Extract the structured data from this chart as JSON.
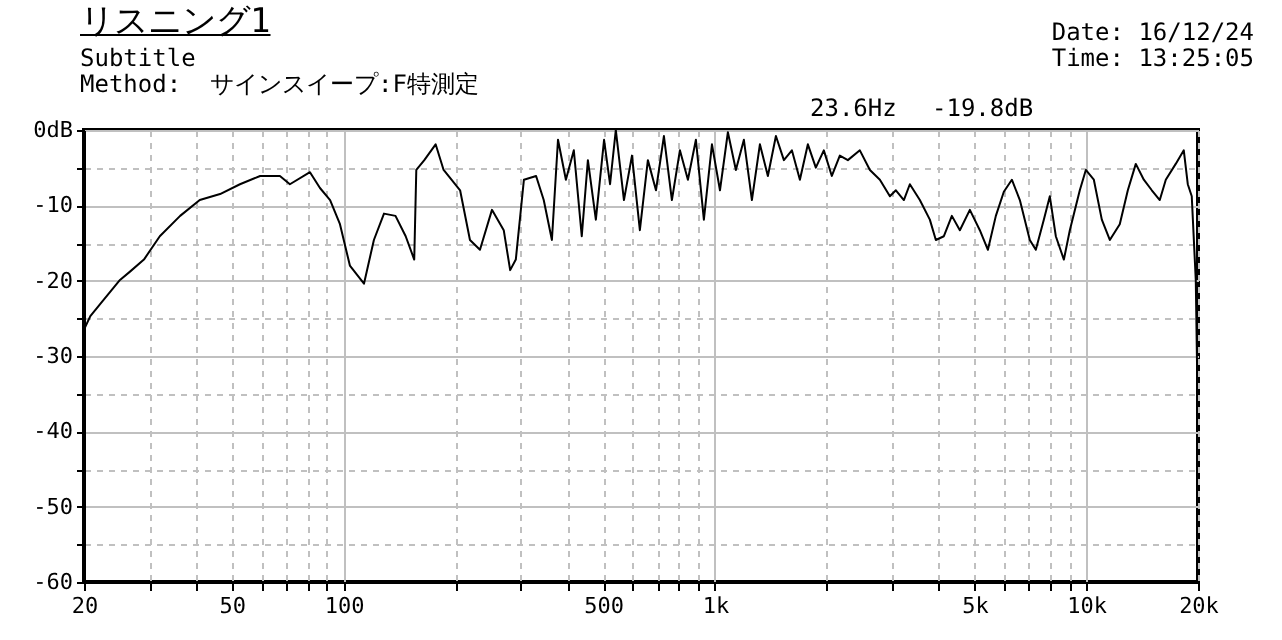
{
  "chart_data": {
    "type": "line",
    "title": "リスニング1",
    "subtitle": "Subtitle",
    "annotations": [
      "Method:  サインスイープ:F特測定",
      "Date: 16/12/24",
      "Time: 13:25:05",
      "23.6Hz",
      "-19.8dB"
    ],
    "x": [
      20,
      20.8,
      22.1,
      25,
      26.6,
      29,
      32,
      36.3,
      41,
      46.5,
      52.6,
      59.6,
      67.4,
      71.7,
      81.2,
      86.4,
      92,
      97.8,
      104,
      113.5,
      120.7,
      128.5,
      138,
      147,
      155,
      157,
      165,
      177,
      186,
      206,
      219,
      233,
      251,
      270,
      281,
      291,
      306,
      330,
      346,
      364,
      378,
      397,
      417,
      438,
      455,
      478,
      503,
      522,
      541,
      569,
      598,
      628,
      660,
      694,
      729,
      766,
      805,
      846,
      889,
      934,
      982,
      1032,
      1084,
      1139,
      1197,
      1258,
      1322,
      1389,
      1460,
      1534,
      1612,
      1694,
      1780,
      1870,
      1965,
      2065,
      2170,
      2281,
      2457,
      2615,
      2782,
      2960,
      3072,
      3228,
      3350,
      3564,
      3792,
      3936,
      4137,
      4347,
      4568,
      4860,
      5170,
      5436,
      5710,
      6000,
      6306,
      6626,
      7048,
      7316,
      7688,
      7980,
      8282,
      8706,
      9034,
      9610,
      9976,
      10484,
      11016,
      11576,
      12312,
      12944,
      13600,
      14292,
      15018,
      15780,
      16380,
      17420,
      18312,
      18772,
      19240,
      19726,
      20000
    ],
    "series": [
      {
        "color": "#000000",
        "values": [
          -26.5,
          -24.7,
          -23.1,
          -19.9,
          -18.8,
          -17.2,
          -14.1,
          -11.4,
          -9.3,
          -8.5,
          -7.2,
          -6.1,
          -6.1,
          -7.2,
          -5.6,
          -7.7,
          -9.3,
          -12.5,
          -18.0,
          -20.4,
          -14.6,
          -11.1,
          -11.4,
          -14.1,
          -17.2,
          -5.3,
          -4.0,
          -1.9,
          -5.3,
          -8.0,
          -14.6,
          -15.9,
          -10.6,
          -13.3,
          -18.6,
          -17.2,
          -6.6,
          -6.1,
          -9.3,
          -14.6,
          -1.3,
          -6.6,
          -2.7,
          -14.1,
          -4.0,
          -11.9,
          -1.3,
          -7.2,
          0,
          -9.3,
          -3.4,
          -13.3,
          -4.0,
          -8.0,
          -0.8,
          -9.3,
          -2.7,
          -6.6,
          -1.3,
          -11.9,
          -1.9,
          -8.0,
          -0.3,
          -5.3,
          -1.3,
          -9.3,
          -1.9,
          -6.1,
          -0.8,
          -4.0,
          -2.7,
          -6.6,
          -1.9,
          -5.0,
          -2.7,
          -6.1,
          -3.4,
          -4.0,
          -2.7,
          -5.3,
          -6.6,
          -8.8,
          -8.0,
          -9.3,
          -7.2,
          -9.3,
          -11.9,
          -14.6,
          -14.1,
          -11.4,
          -13.3,
          -10.6,
          -13.3,
          -15.9,
          -11.4,
          -8.2,
          -6.6,
          -9.3,
          -14.6,
          -15.9,
          -11.9,
          -8.8,
          -14.1,
          -17.2,
          -13.3,
          -8.0,
          -5.3,
          -6.6,
          -11.9,
          -14.6,
          -12.5,
          -8.0,
          -4.5,
          -6.6,
          -8.0,
          -9.3,
          -6.6,
          -4.5,
          -2.7,
          -7.2,
          -8.8,
          -19.9,
          -39.8
        ]
      }
    ],
    "xlim": [
      20,
      20000
    ],
    "xticks": [
      20,
      {
        "value": 30,
        "label": null
      },
      {
        "value": 40,
        "label": null
      },
      50,
      {
        "value": 60,
        "label": null
      },
      {
        "value": 70,
        "label": null
      },
      {
        "value": 80,
        "label": null
      },
      {
        "value": 90,
        "label": null
      },
      100,
      {
        "value": 200,
        "label": null
      },
      {
        "value": 300,
        "label": null
      },
      {
        "value": 400,
        "label": null
      },
      500,
      {
        "value": 600,
        "label": null
      },
      {
        "value": 700,
        "label": null
      },
      {
        "value": 800,
        "label": null
      },
      {
        "value": 900,
        "label": null
      },
      {
        "value": 1000,
        "label": "1k"
      },
      {
        "value": 2000,
        "label": null
      },
      {
        "value": 3000,
        "label": null
      },
      {
        "value": 4000,
        "label": null
      },
      {
        "value": 5000,
        "label": "5k"
      },
      {
        "value": 6000,
        "label": null
      },
      {
        "value": 7000,
        "label": null
      },
      {
        "value": 8000,
        "label": null
      },
      {
        "value": 9000,
        "label": null
      },
      {
        "value": 10000,
        "label": "10k"
      },
      {
        "value": 20000,
        "label": "20k"
      }
    ],
    "ylim": [
      -60,
      0
    ],
    "yticks": [
      {
        "value": 0,
        "label": "0dB"
      },
      {
        "value": -5,
        "label": null
      },
      -10,
      {
        "value": -15,
        "label": null
      },
      -20,
      {
        "value": -25,
        "label": null
      },
      -30,
      {
        "value": -35,
        "label": null
      },
      -40,
      {
        "value": -45,
        "label": null
      },
      -50,
      {
        "value": -55,
        "label": null
      },
      -60
    ],
    "log": "x",
    "grid": true
  }
}
